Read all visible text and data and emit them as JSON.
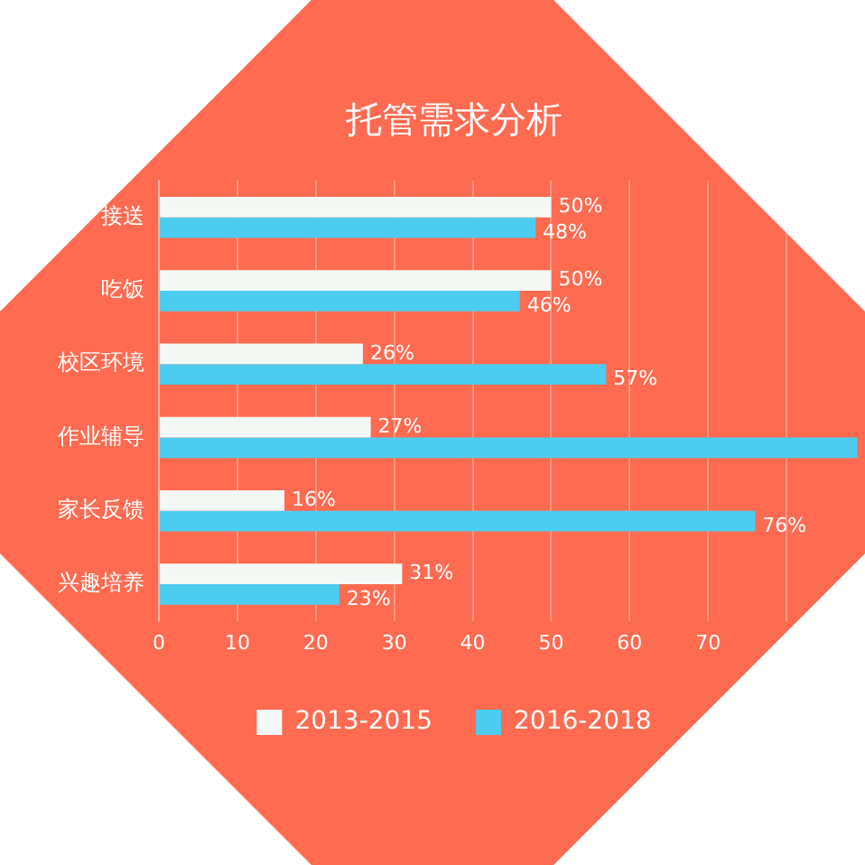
{
  "chart_data": {
    "type": "bar",
    "orientation": "horizontal",
    "title": "托管需求分析",
    "categories": [
      "接送",
      "吃饭",
      "校区环境",
      "作业辅导",
      "家长反馈",
      "兴趣培养"
    ],
    "series": [
      {
        "name": "2013-2015",
        "color": "#f5f9f6",
        "values": [
          50,
          50,
          26,
          27,
          16,
          31
        ],
        "value_labels": [
          "50%",
          "50%",
          "26%",
          "27%",
          "16%",
          "31%"
        ]
      },
      {
        "name": "2016-2018",
        "color": "#4ccdf0",
        "values": [
          48,
          46,
          57,
          89,
          76,
          23
        ],
        "value_labels": [
          "48%",
          "46%",
          "57%",
          null,
          "76%",
          "23%"
        ]
      }
    ],
    "xlim": [
      0,
      90
    ],
    "xticks": [
      0,
      10,
      20,
      30,
      40,
      50,
      60,
      70,
      {
        "value": 80,
        "label": null
      }
    ],
    "grid": "x",
    "legend": "bottom"
  }
}
